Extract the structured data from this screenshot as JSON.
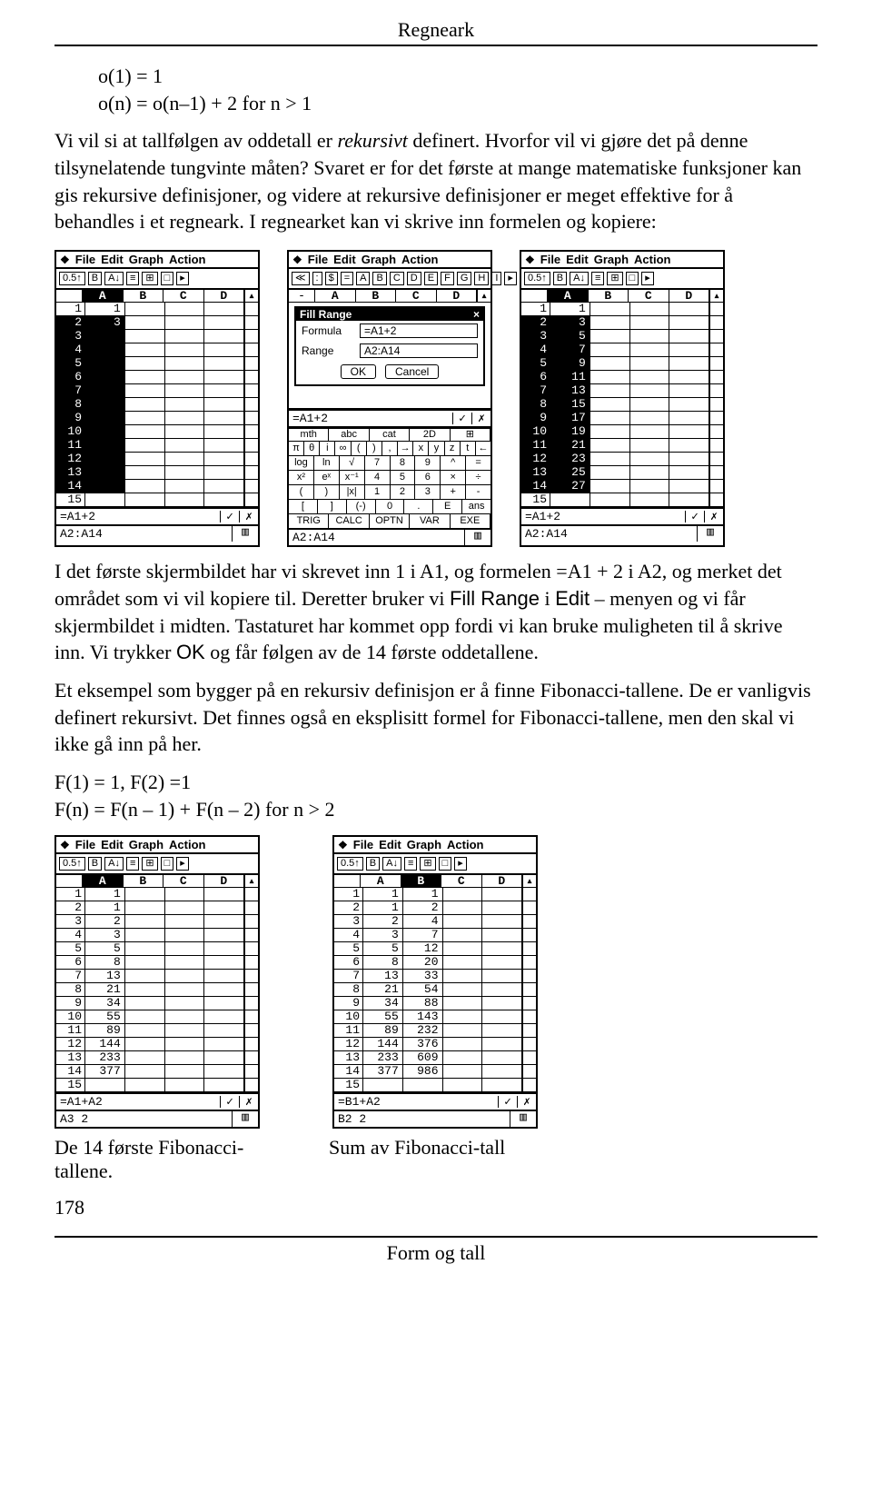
{
  "header": {
    "title": "Regneark"
  },
  "intro": {
    "line1": "o(1) = 1",
    "line2": "o(n) = o(n–1) + 2      for n > 1"
  },
  "para1a": "Vi vil si at tallfølgen av oddetall er ",
  "para1b": "rekursivt",
  "para1c": " definert. Hvorfor vil vi gjøre det på denne tilsynelatende tungvinte måten? Svaret er for det første at mange matematiske funksjoner kan gis rekursive definisjoner, og videre at rekursive definisjoner er meget effektive for å behandles i et regneark. I regnearket kan vi skrive inn formelen og kopiere:",
  "menubar": {
    "file": "File",
    "edit": "Edit",
    "graph": "Graph",
    "action": "Action"
  },
  "toolbar_icons": [
    "0.5↑",
    "B",
    "A↓",
    "≡",
    "⊞",
    "□",
    "▸"
  ],
  "toolbar_icons2": [
    "≪",
    ":",
    "$",
    "=",
    "A",
    "B",
    "C",
    "D",
    "E",
    "F",
    "G",
    "H",
    "I",
    "▸"
  ],
  "cols": [
    "A",
    "B",
    "C",
    "D"
  ],
  "shot1": {
    "rows": [
      {
        "n": "1",
        "A": "1"
      },
      {
        "n": "2",
        "A": "3"
      },
      {
        "n": "3",
        "A": ""
      },
      {
        "n": "4",
        "A": ""
      },
      {
        "n": "5",
        "A": ""
      },
      {
        "n": "6",
        "A": ""
      },
      {
        "n": "7",
        "A": ""
      },
      {
        "n": "8",
        "A": ""
      },
      {
        "n": "9",
        "A": ""
      },
      {
        "n": "10",
        "A": ""
      },
      {
        "n": "11",
        "A": ""
      },
      {
        "n": "12",
        "A": ""
      },
      {
        "n": "13",
        "A": ""
      },
      {
        "n": "14",
        "A": ""
      },
      {
        "n": "15",
        "A": ""
      }
    ],
    "formula": "=A1+2",
    "status": "A2:A14"
  },
  "shot2": {
    "dialog_title": "Fill Range",
    "formula_label": "Formula",
    "formula_value": "=A1+2",
    "range_label": "Range",
    "range_value": "A2:A14",
    "ok": "OK",
    "cancel": "Cancel",
    "editline": "=A1+2",
    "tabs": [
      "mth",
      "abc",
      "cat",
      "2D",
      "⊞"
    ],
    "krow1": [
      "π",
      "θ",
      "i",
      "∞",
      "(",
      ")",
      ",",
      "→",
      "x",
      "y",
      "z",
      "t",
      "←"
    ],
    "krow2": [
      "log",
      "ln",
      "√",
      "7",
      "8",
      "9",
      "^",
      "="
    ],
    "krow3": [
      "x²",
      "eˣ",
      "x⁻¹",
      "4",
      "5",
      "6",
      "×",
      "÷"
    ],
    "krow4": [
      "(",
      ")",
      "|x|",
      "1",
      "2",
      "3",
      "+",
      "-"
    ],
    "krow5": [
      "[",
      "]",
      "(-)",
      "0",
      ".",
      "E",
      "ans"
    ],
    "bottomrow": [
      "TRIG",
      "CALC",
      "OPTN",
      "VAR",
      "EXE"
    ],
    "status": "A2:A14"
  },
  "shot3": {
    "rows": [
      {
        "n": "1",
        "A": "1"
      },
      {
        "n": "2",
        "A": "3"
      },
      {
        "n": "3",
        "A": "5"
      },
      {
        "n": "4",
        "A": "7"
      },
      {
        "n": "5",
        "A": "9"
      },
      {
        "n": "6",
        "A": "11"
      },
      {
        "n": "7",
        "A": "13"
      },
      {
        "n": "8",
        "A": "15"
      },
      {
        "n": "9",
        "A": "17"
      },
      {
        "n": "10",
        "A": "19"
      },
      {
        "n": "11",
        "A": "21"
      },
      {
        "n": "12",
        "A": "23"
      },
      {
        "n": "13",
        "A": "25"
      },
      {
        "n": "14",
        "A": "27"
      },
      {
        "n": "15",
        "A": ""
      }
    ],
    "formula": "=A1+2",
    "status": "A2:A14"
  },
  "para2a": "I det første skjermbildet har vi skrevet inn 1 i A1, og formelen =A1 + 2 i A2, og merket det området som vi vil kopiere til. Deretter bruker vi ",
  "para2b": "Fill Range",
  "para2c": " i ",
  "para2d": "Edit",
  "para2e": " – menyen og vi får skjermbildet i midten. Tastaturet har kommet opp fordi vi kan bruke muligheten til å skrive inn. Vi trykker ",
  "para2f": "OK",
  "para2g": " og får følgen av de 14 første oddetallene.",
  "para3": "Et eksempel som bygger på en rekursiv definisjon er å finne Fibonacci-tallene. De er vanligvis definert rekursivt. Det finnes også en eksplisitt formel for Fibonacci-tallene, men den skal vi ikke gå inn på her.",
  "fib1": "F(1) = 1, F(2) =1",
  "fib2": "F(n) = F(n – 1) + F(n – 2) for n > 2",
  "shot4": {
    "rows": [
      {
        "n": "1",
        "A": "1"
      },
      {
        "n": "2",
        "A": "1"
      },
      {
        "n": "3",
        "A": "2"
      },
      {
        "n": "4",
        "A": "3"
      },
      {
        "n": "5",
        "A": "5"
      },
      {
        "n": "6",
        "A": "8"
      },
      {
        "n": "7",
        "A": "13"
      },
      {
        "n": "8",
        "A": "21"
      },
      {
        "n": "9",
        "A": "34"
      },
      {
        "n": "10",
        "A": "55"
      },
      {
        "n": "11",
        "A": "89"
      },
      {
        "n": "12",
        "A": "144"
      },
      {
        "n": "13",
        "A": "233"
      },
      {
        "n": "14",
        "A": "377"
      },
      {
        "n": "15",
        "A": ""
      }
    ],
    "formula": "=A1+A2",
    "status": "A3  2"
  },
  "shot5": {
    "rows": [
      {
        "n": "1",
        "A": "1",
        "B": "1"
      },
      {
        "n": "2",
        "A": "1",
        "B": "2"
      },
      {
        "n": "3",
        "A": "2",
        "B": "4"
      },
      {
        "n": "4",
        "A": "3",
        "B": "7"
      },
      {
        "n": "5",
        "A": "5",
        "B": "12"
      },
      {
        "n": "6",
        "A": "8",
        "B": "20"
      },
      {
        "n": "7",
        "A": "13",
        "B": "33"
      },
      {
        "n": "8",
        "A": "21",
        "B": "54"
      },
      {
        "n": "9",
        "A": "34",
        "B": "88"
      },
      {
        "n": "10",
        "A": "55",
        "B": "143"
      },
      {
        "n": "11",
        "A": "89",
        "B": "232"
      },
      {
        "n": "12",
        "A": "144",
        "B": "376"
      },
      {
        "n": "13",
        "A": "233",
        "B": "609"
      },
      {
        "n": "14",
        "A": "377",
        "B": "986"
      },
      {
        "n": "15",
        "A": "",
        "B": ""
      }
    ],
    "formula": "=B1+A2",
    "status": "B2  2"
  },
  "caption4": "De 14 første Fibonacci-tallene.",
  "caption5": "Sum av Fibonacci-tall",
  "pagenum": "178",
  "footer": "Form og tall"
}
